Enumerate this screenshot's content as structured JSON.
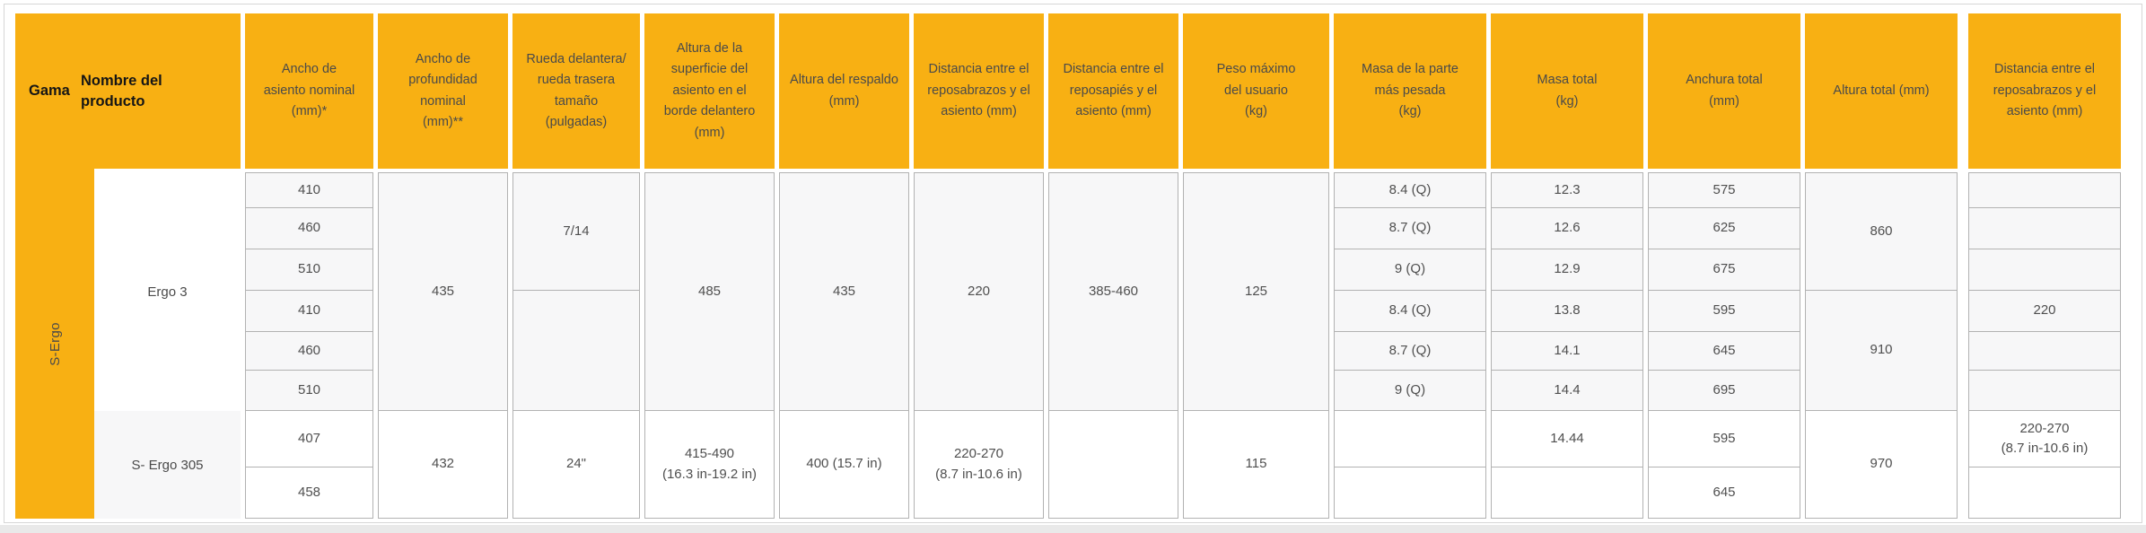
{
  "theme": {
    "header_orange": "#F8B013",
    "row_stripe_gray": "#f7f7f8",
    "cell_border_gray": "#b2b2b2",
    "panel_border_gray": "#d6d6d6",
    "bottom_strip_gray": "#e9e9e9",
    "header_text": "#4a4a4a",
    "body_text": "#4f4f4f"
  },
  "table": {
    "header": {
      "gama": "Gama",
      "nombre": "Nombre del\nproducto",
      "cols": [
        "Ancho de\nasiento nominal\n(mm)*",
        "Ancho de\nprofundidad\nnominal\n(mm)**",
        "Rueda delantera/\nrueda trasera\ntamaño\n(pulgadas)",
        "Altura de la\nsuperficie del\nasiento en el\nborde delantero\n(mm)",
        "Altura del respaldo\n(mm)",
        "Distancia entre el\nreposabrazos y el\nasiento (mm)",
        "Distancia entre el\nreposapiés y el\nasiento (mm)",
        "Peso máximo\ndel usuario\n(kg)",
        "Masa de la parte\nmás pesada\n(kg)",
        "Masa total\n(kg)",
        "Anchura total\n(mm)",
        "Altura total (mm)",
        "Distancia entre el\nreposabrazos y el\nasiento (mm)"
      ]
    },
    "gama": "S-Ergo",
    "products": [
      "Ergo 3",
      "S- Ergo 305"
    ],
    "seat_width": [
      "410",
      "460",
      "510",
      "410",
      "460",
      "510",
      "407",
      "458"
    ],
    "seat_depth": [
      "435",
      "432"
    ],
    "wheel_size": [
      "7/14",
      "",
      "24\""
    ],
    "surface": [
      "485",
      "415-490\n(16.3 in-19.2 in)"
    ],
    "backrest": [
      "435",
      "400 (15.7 in)"
    ],
    "armrest": [
      "220",
      "220-270\n(8.7 in-10.6 in)"
    ],
    "footrest": [
      "385-460",
      ""
    ],
    "weight": [
      "125",
      "115"
    ],
    "heaviest": [
      "8.4 (Q)",
      "8.7 (Q)",
      "9 (Q)",
      "8.4 (Q)",
      "8.7 (Q)",
      "9 (Q)",
      "",
      ""
    ],
    "mass": [
      "12.3",
      "12.6",
      "12.9",
      "13.8",
      "14.1",
      "14.4",
      "14.44",
      ""
    ],
    "width_total": [
      "575",
      "625",
      "675",
      "595",
      "645",
      "695",
      "595",
      "645"
    ],
    "height_total": [
      "860",
      "910",
      "970"
    ],
    "armrest2": [
      "",
      "",
      "",
      "220",
      "",
      "",
      "220-270\n(8.7 in-10.6 in)",
      ""
    ]
  }
}
